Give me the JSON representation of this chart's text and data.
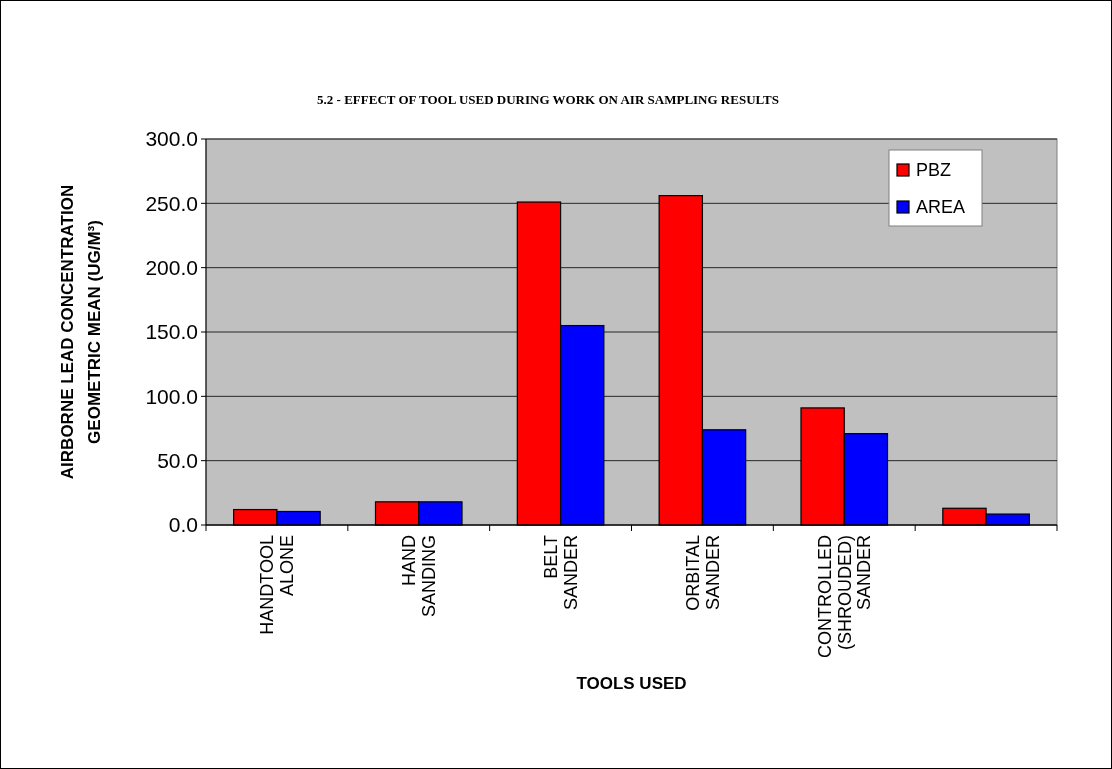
{
  "chart_data": {
    "type": "bar",
    "title": "5.2 - EFFECT OF TOOL USED DURING WORK ON AIR SAMPLING RESULTS",
    "xlabel": "TOOLS USED",
    "ylabel": "AIRBORNE LEAD CONCENTRATION\nGEOMETRIC MEAN (UG/M³)",
    "categories": [
      "HANDTOOL\nALONE",
      "HAND\nSANDING",
      "BELT\nSANDER",
      "ORBITAL\nSANDER",
      "CONTROLLED\n(SHROUDED)\nSANDER",
      null
    ],
    "series": [
      {
        "name": "PBZ",
        "color": "#ff0000",
        "values": [
          12,
          18,
          251,
          256,
          91,
          13
        ]
      },
      {
        "name": "AREA",
        "color": "#0000ff",
        "values": [
          10.5,
          18,
          155,
          74,
          71,
          8.5
        ]
      }
    ],
    "ylim": [
      0,
      300
    ],
    "yticks": [
      {
        "value": 0,
        "label": "0.0"
      },
      {
        "value": 50,
        "label": "50.0"
      },
      {
        "value": 100,
        "label": "100.0"
      },
      {
        "value": 150,
        "label": "150.0"
      },
      {
        "value": 200,
        "label": "200.0"
      },
      {
        "value": 250,
        "label": "250.0"
      },
      {
        "value": 300,
        "label": "300.0"
      }
    ],
    "grid": "y",
    "legend": "top right"
  }
}
